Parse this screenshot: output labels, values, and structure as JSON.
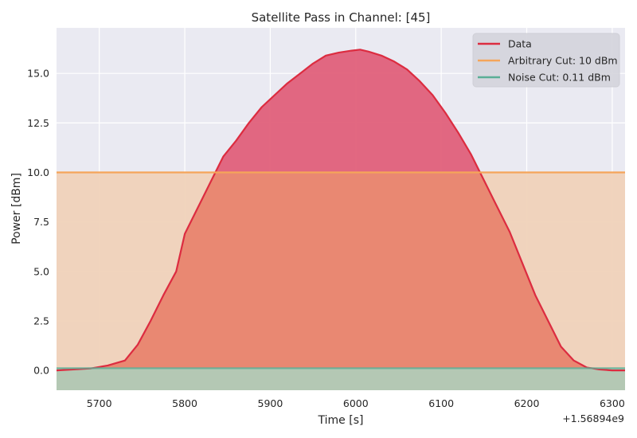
{
  "chart_data": {
    "type": "area",
    "title": "Satellite Pass in Channel: [45]",
    "xlabel": "Time [s]",
    "ylabel": "Power [dBm]",
    "x_offset_label": "+1.56894e9",
    "xlim": [
      5650,
      6315
    ],
    "ylim": [
      -1.0,
      17.3
    ],
    "x_ticks": [
      5700,
      5800,
      5900,
      6000,
      6100,
      6200,
      6300
    ],
    "x_tick_labels": [
      "5700",
      "5800",
      "5900",
      "6000",
      "6100",
      "6200",
      "6300"
    ],
    "y_ticks": [
      0.0,
      2.5,
      5.0,
      7.5,
      10.0,
      12.5,
      15.0
    ],
    "y_tick_labels": [
      "0.0",
      "2.5",
      "5.0",
      "7.5",
      "10.0",
      "12.5",
      "15.0"
    ],
    "grid": true,
    "legend_position": "top-right",
    "series": [
      {
        "name": "Data",
        "color": "#dc2c40",
        "fill": "#e0607a",
        "x": [
          5650,
          5670,
          5690,
          5710,
          5730,
          5745,
          5760,
          5775,
          5790,
          5800,
          5815,
          5830,
          5845,
          5860,
          5875,
          5890,
          5905,
          5920,
          5935,
          5950,
          5965,
          5980,
          5995,
          6005,
          6015,
          6030,
          6045,
          6060,
          6075,
          6090,
          6105,
          6120,
          6135,
          6150,
          6165,
          6180,
          6195,
          6210,
          6225,
          6240,
          6255,
          6270,
          6285,
          6300,
          6315
        ],
        "y": [
          0.0,
          0.05,
          0.1,
          0.25,
          0.5,
          1.3,
          2.5,
          3.8,
          5.0,
          6.9,
          8.2,
          9.5,
          10.8,
          11.6,
          12.5,
          13.3,
          13.9,
          14.5,
          15.0,
          15.5,
          15.9,
          16.05,
          16.15,
          16.2,
          16.1,
          15.9,
          15.6,
          15.2,
          14.6,
          13.9,
          13.0,
          12.0,
          10.9,
          9.6,
          8.3,
          7.0,
          5.4,
          3.8,
          2.5,
          1.2,
          0.5,
          0.15,
          0.05,
          0.0,
          0.0
        ]
      },
      {
        "name": "Arbitrary Cut: 10 dBm",
        "color": "#f5a55a",
        "fill": "#f0d2b9",
        "y_const": 10
      },
      {
        "name": "Noise Cut: 0.11 dBm",
        "color": "#5aaf96",
        "fill": "#b4c8b4",
        "y_const": 0.11
      }
    ]
  }
}
